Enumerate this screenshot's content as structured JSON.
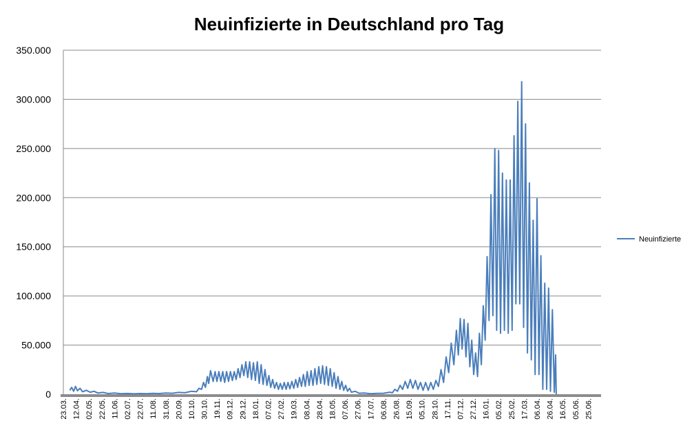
{
  "chart_data": {
    "type": "line",
    "title": "Neuinfizierte in Deutschland pro Tag",
    "xlabel": "",
    "ylabel": "",
    "ylim": [
      0,
      350000
    ],
    "yticks": [
      0,
      50000,
      100000,
      150000,
      200000,
      250000,
      300000,
      350000
    ],
    "ytick_labels": [
      "0",
      "50.000",
      "100.000",
      "150.000",
      "200.000",
      "250.000",
      "300.000",
      "350.000"
    ],
    "x_tick_labels": [
      "23.03.",
      "12.04.",
      "02.05.",
      "22.05.",
      "11.06.",
      "02.07.",
      "22.07.",
      "11.08.",
      "31.08.",
      "20.09.",
      "10.10.",
      "30.10.",
      "19.11.",
      "09.12.",
      "29.12.",
      "18.01.",
      "07.02.",
      "27.02.",
      "19.03.",
      "08.04.",
      "28.04.",
      "18.05.",
      "07.06.",
      "27.06.",
      "17.07.",
      "06.08.",
      "26.08.",
      "15.09.",
      "05.10.",
      "28.10.",
      "17.11.",
      "07.12.",
      "27.12.",
      "16.01.",
      "05.02.",
      "25.02.",
      "17.03.",
      "06.04.",
      "26.04.",
      "16.05.",
      "05.06.",
      "25.06."
    ],
    "grid": true,
    "legend_position": "right",
    "series": [
      {
        "name": "Neuinfizierte",
        "color": "#4a7ebb",
        "points": [
          [
            0.0,
            4000
          ],
          [
            0.15,
            7000
          ],
          [
            0.3,
            3000
          ],
          [
            0.45,
            8000
          ],
          [
            0.6,
            3500
          ],
          [
            0.8,
            6000
          ],
          [
            1.0,
            2500
          ],
          [
            1.3,
            4000
          ],
          [
            1.6,
            2000
          ],
          [
            1.9,
            3000
          ],
          [
            2.2,
            1200
          ],
          [
            2.6,
            1800
          ],
          [
            3.0,
            700
          ],
          [
            3.5,
            1200
          ],
          [
            4.0,
            500
          ],
          [
            4.5,
            800
          ],
          [
            5.0,
            400
          ],
          [
            5.5,
            700
          ],
          [
            6.0,
            500
          ],
          [
            6.5,
            900
          ],
          [
            7.0,
            700
          ],
          [
            7.5,
            1200
          ],
          [
            8.0,
            1000
          ],
          [
            8.5,
            1800
          ],
          [
            9.0,
            1500
          ],
          [
            9.5,
            3000
          ],
          [
            9.9,
            2500
          ],
          [
            10.1,
            6000
          ],
          [
            10.3,
            5000
          ],
          [
            10.45,
            12000
          ],
          [
            10.6,
            7000
          ],
          [
            10.75,
            18000
          ],
          [
            10.85,
            11000
          ],
          [
            11.0,
            24000
          ],
          [
            11.2,
            13000
          ],
          [
            11.35,
            23000
          ],
          [
            11.5,
            13000
          ],
          [
            11.65,
            23000
          ],
          [
            11.8,
            13000
          ],
          [
            11.95,
            23000
          ],
          [
            12.1,
            12000
          ],
          [
            12.25,
            23000
          ],
          [
            12.4,
            13000
          ],
          [
            12.55,
            23000
          ],
          [
            12.7,
            14000
          ],
          [
            12.85,
            23000
          ],
          [
            13.0,
            15000
          ],
          [
            13.15,
            26000
          ],
          [
            13.3,
            17000
          ],
          [
            13.45,
            30000
          ],
          [
            13.6,
            19000
          ],
          [
            13.75,
            33000
          ],
          [
            13.9,
            17000
          ],
          [
            14.05,
            33000
          ],
          [
            14.2,
            15000
          ],
          [
            14.35,
            32000
          ],
          [
            14.5,
            14000
          ],
          [
            14.65,
            33000
          ],
          [
            14.8,
            11000
          ],
          [
            14.95,
            30000
          ],
          [
            15.1,
            10000
          ],
          [
            15.25,
            25000
          ],
          [
            15.4,
            9000
          ],
          [
            15.55,
            19000
          ],
          [
            15.7,
            7000
          ],
          [
            15.85,
            15000
          ],
          [
            16.0,
            6000
          ],
          [
            16.15,
            12000
          ],
          [
            16.3,
            5000
          ],
          [
            16.45,
            11000
          ],
          [
            16.6,
            5000
          ],
          [
            16.75,
            12000
          ],
          [
            16.9,
            5000
          ],
          [
            17.05,
            12000
          ],
          [
            17.2,
            5500
          ],
          [
            17.35,
            13000
          ],
          [
            17.5,
            6000
          ],
          [
            17.65,
            15000
          ],
          [
            17.8,
            7000
          ],
          [
            17.95,
            17000
          ],
          [
            18.1,
            8000
          ],
          [
            18.25,
            20000
          ],
          [
            18.4,
            8000
          ],
          [
            18.55,
            23000
          ],
          [
            18.7,
            9000
          ],
          [
            18.85,
            24000
          ],
          [
            19.0,
            9000
          ],
          [
            19.15,
            26000
          ],
          [
            19.3,
            10000
          ],
          [
            19.45,
            28000
          ],
          [
            19.6,
            11000
          ],
          [
            19.75,
            29000
          ],
          [
            19.9,
            10000
          ],
          [
            20.05,
            28000
          ],
          [
            20.2,
            9000
          ],
          [
            20.35,
            26000
          ],
          [
            20.5,
            8000
          ],
          [
            20.65,
            22000
          ],
          [
            20.8,
            6000
          ],
          [
            20.95,
            18000
          ],
          [
            21.1,
            5000
          ],
          [
            21.25,
            13000
          ],
          [
            21.4,
            4000
          ],
          [
            21.55,
            9000
          ],
          [
            21.7,
            3000
          ],
          [
            21.85,
            6000
          ],
          [
            22.0,
            2000
          ],
          [
            22.3,
            3000
          ],
          [
            22.6,
            1000
          ],
          [
            23.0,
            1200
          ],
          [
            23.5,
            500
          ],
          [
            24.0,
            900
          ],
          [
            24.5,
            1000
          ],
          [
            25.0,
            2000
          ],
          [
            25.2,
            1500
          ],
          [
            25.4,
            5000
          ],
          [
            25.6,
            3000
          ],
          [
            25.8,
            9000
          ],
          [
            26.0,
            5000
          ],
          [
            26.2,
            13000
          ],
          [
            26.4,
            6000
          ],
          [
            26.6,
            15000
          ],
          [
            26.8,
            6000
          ],
          [
            27.0,
            14000
          ],
          [
            27.2,
            5000
          ],
          [
            27.4,
            12000
          ],
          [
            27.6,
            4000
          ],
          [
            27.8,
            12000
          ],
          [
            28.0,
            4000
          ],
          [
            28.2,
            12000
          ],
          [
            28.4,
            5000
          ],
          [
            28.6,
            14000
          ],
          [
            28.8,
            8000
          ],
          [
            29.0,
            25000
          ],
          [
            29.2,
            12000
          ],
          [
            29.4,
            38000
          ],
          [
            29.6,
            22000
          ],
          [
            29.8,
            52000
          ],
          [
            30.0,
            30000
          ],
          [
            30.2,
            65000
          ],
          [
            30.35,
            40000
          ],
          [
            30.5,
            77000
          ],
          [
            30.65,
            46000
          ],
          [
            30.8,
            76000
          ],
          [
            30.95,
            38000
          ],
          [
            31.1,
            72000
          ],
          [
            31.25,
            28000
          ],
          [
            31.4,
            55000
          ],
          [
            31.55,
            20000
          ],
          [
            31.7,
            42000
          ],
          [
            31.85,
            18000
          ],
          [
            32.0,
            62000
          ],
          [
            32.15,
            30000
          ],
          [
            32.3,
            90000
          ],
          [
            32.45,
            55000
          ],
          [
            32.6,
            140000
          ],
          [
            32.75,
            75000
          ],
          [
            32.9,
            203000
          ],
          [
            33.05,
            80000
          ],
          [
            33.2,
            250000
          ],
          [
            33.35,
            65000
          ],
          [
            33.5,
            248000
          ],
          [
            33.65,
            62000
          ],
          [
            33.8,
            225000
          ],
          [
            33.95,
            65000
          ],
          [
            34.1,
            218000
          ],
          [
            34.25,
            62000
          ],
          [
            34.4,
            218000
          ],
          [
            34.55,
            65000
          ],
          [
            34.7,
            263000
          ],
          [
            34.85,
            92000
          ],
          [
            35.0,
            298000
          ],
          [
            35.15,
            92000
          ],
          [
            35.3,
            318000
          ],
          [
            35.45,
            68000
          ],
          [
            35.6,
            275000
          ],
          [
            35.75,
            42000
          ],
          [
            35.9,
            215000
          ],
          [
            36.05,
            35000
          ],
          [
            36.2,
            177000
          ],
          [
            36.35,
            20000
          ],
          [
            36.5,
            199000
          ],
          [
            36.65,
            20000
          ],
          [
            36.8,
            141000
          ],
          [
            36.95,
            5000
          ],
          [
            37.1,
            113000
          ],
          [
            37.25,
            5000
          ],
          [
            37.4,
            108000
          ],
          [
            37.55,
            3000
          ],
          [
            37.7,
            86000
          ],
          [
            37.85,
            2000
          ],
          [
            37.95,
            40000
          ],
          [
            38.0,
            0
          ]
        ]
      }
    ]
  }
}
